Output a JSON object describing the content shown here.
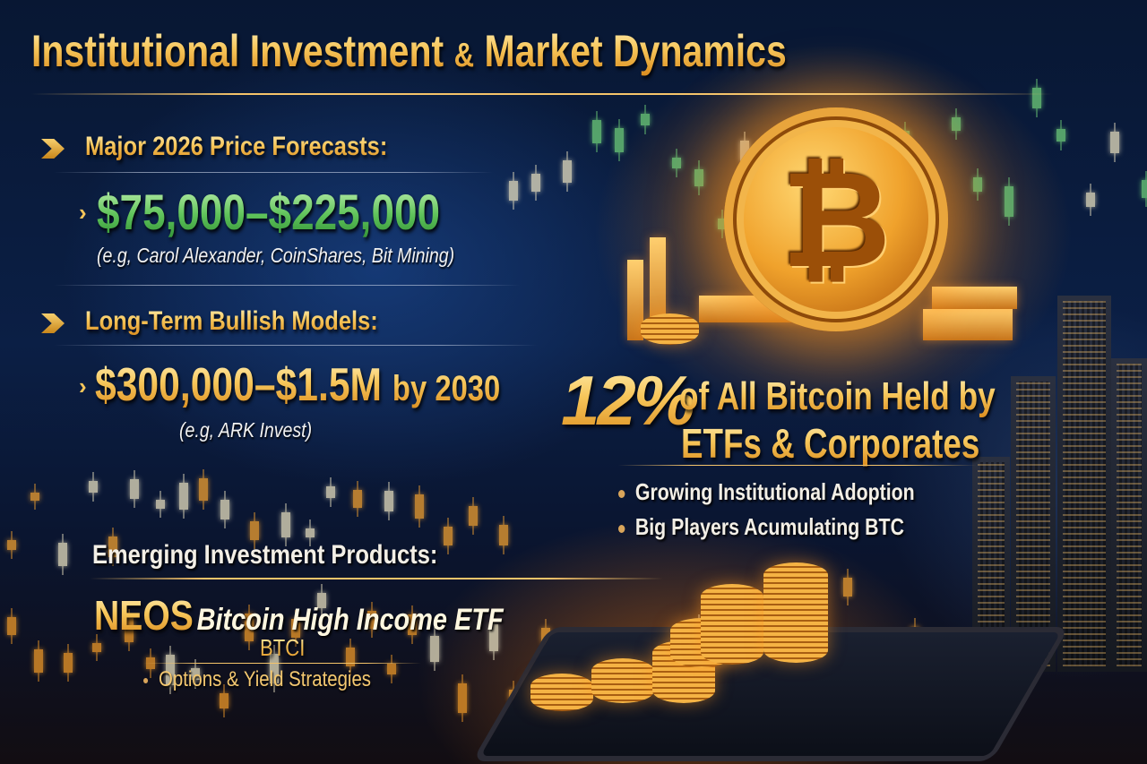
{
  "title": {
    "main": "Institutional Investment",
    "amp": "&",
    "rest": "Market Dynamics"
  },
  "forecasts": {
    "heading": "Major 2026 Price Forecasts:",
    "range": "$75,000–$225,000",
    "sources": "(e.g, Carol Alexander, CoinShares, Bit Mining)"
  },
  "long_term": {
    "heading": "Long-Term Bullish Models:",
    "range": "$300,000–$1.5M",
    "suffix": "by 2030",
    "sources": "(e.g, ARK Invest)"
  },
  "holdings": {
    "percent": "12%",
    "line1": "of All Bitcoin Held by",
    "line2": "ETFs & Corporates",
    "bullets": [
      "Growing Institutional Adoption",
      "Big Players Acumulating BTC"
    ]
  },
  "products": {
    "heading": "Emerging Investment Products:",
    "brand": "NEOS",
    "product": "Bitcoin High Income ETF",
    "ticker": "BTCI",
    "bullet": "Options & Yield Strategies"
  },
  "coin": {
    "symbol": "₿"
  },
  "colors": {
    "gold": "#f7c65a",
    "green": "#5fc35a",
    "background": "#0b1f45",
    "glow": "#ff9a1e"
  }
}
